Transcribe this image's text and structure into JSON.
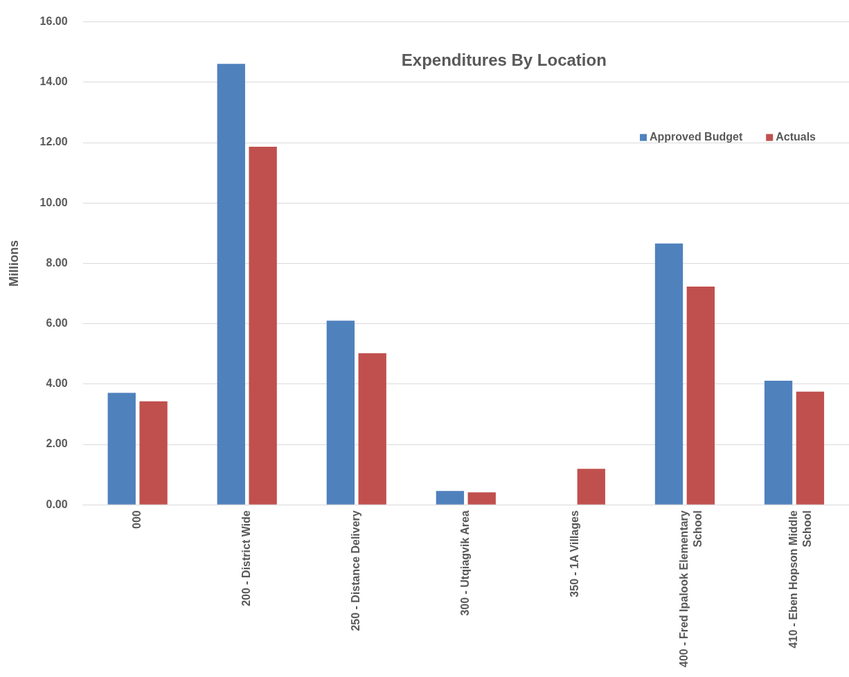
{
  "chart_data": {
    "type": "bar",
    "title": "Expenditures By Location",
    "ylabel": "Millions",
    "categories": [
      "000",
      "200 - District Wide",
      "250 - Distance Delivery",
      "300 - Utqiagvik Area",
      "350 - 1A Villages",
      "400 - Fred Ipalook Elementary School",
      "410 - Eben Hopson Middle School"
    ],
    "series": [
      {
        "name": "Approved Budget",
        "color": "#4f81bd",
        "values": [
          3.71,
          14.61,
          6.1,
          0.46,
          null,
          8.66,
          4.11
        ]
      },
      {
        "name": "Actuals",
        "color": "#c0504d",
        "values": [
          3.43,
          11.86,
          5.02,
          0.41,
          1.19,
          7.23,
          3.75
        ]
      }
    ],
    "ylim": [
      0,
      16
    ],
    "yticks": [
      {
        "value": 0,
        "label": "0.00"
      },
      {
        "value": 2,
        "label": "2.00"
      },
      {
        "value": 4,
        "label": "4.00"
      },
      {
        "value": 6,
        "label": "6.00"
      },
      {
        "value": 8,
        "label": "8.00"
      },
      {
        "value": 10,
        "label": "10.00"
      },
      {
        "value": 12,
        "label": "12.00"
      },
      {
        "value": 14,
        "label": "14.00"
      },
      {
        "value": 16,
        "label": "16.00"
      }
    ],
    "grid": "y",
    "legend": "top right"
  }
}
